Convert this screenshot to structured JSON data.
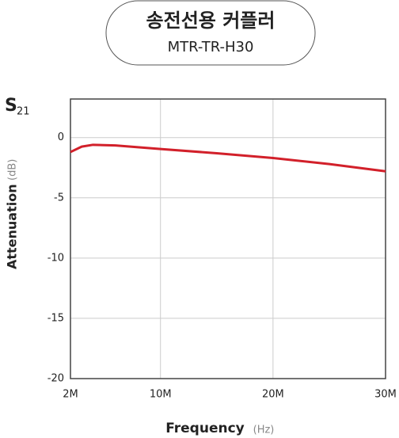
{
  "chart_data": {
    "type": "line",
    "title": "송전선용 커플러",
    "subtitle": "MTR-TR-H30",
    "param_symbol": "S",
    "param_subscript": "21",
    "y_label": "Attenuation",
    "y_unit": "(dB)",
    "x_label": "Frequency",
    "x_unit": "(Hz)",
    "x": [
      2,
      3,
      4,
      6,
      8,
      10,
      15,
      20,
      25,
      30
    ],
    "series": [
      {
        "name": "S21",
        "color": "#d2202a",
        "values": [
          -1.2,
          -0.75,
          -0.6,
          -0.65,
          -0.8,
          -0.95,
          -1.3,
          -1.7,
          -2.2,
          -2.8
        ]
      }
    ],
    "xlim": [
      2,
      30
    ],
    "xticks": [
      {
        "value": 2,
        "label": "2M"
      },
      {
        "value": 10,
        "label": "10M"
      },
      {
        "value": 20,
        "label": "20M"
      },
      {
        "value": 30,
        "label": "30M"
      }
    ],
    "ylim": [
      -20,
      3.2
    ],
    "yticks": [
      0,
      -5,
      -10,
      -15,
      -20
    ],
    "grid": true
  }
}
